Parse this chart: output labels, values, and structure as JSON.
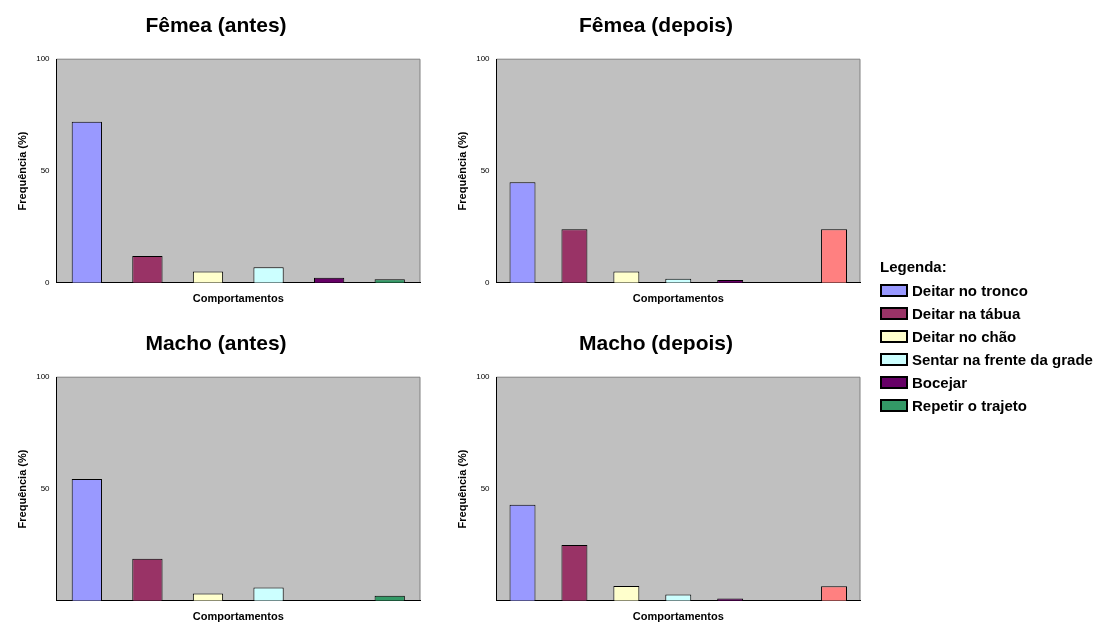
{
  "chart_data": [
    {
      "type": "bar",
      "title": "Fêmea (antes)",
      "xlabel": "Comportamentos",
      "ylabel": "Frequência (%)",
      "categories": [
        null,
        null,
        null,
        null,
        null,
        null
      ],
      "ylim": [
        0,
        100
      ],
      "yticks": [
        0,
        50,
        100
      ],
      "legend": "right",
      "series": [
        {
          "name": "Deitar no tronco",
          "color": "#9999ff",
          "values": [
            72,
            null,
            null,
            null,
            null,
            null
          ]
        },
        {
          "name": "Deitar na tábua",
          "color": "#993366",
          "values": [
            null,
            12,
            null,
            null,
            null,
            null
          ]
        },
        {
          "name": "Deitar no chão",
          "color": "#ffffcc",
          "values": [
            null,
            null,
            5,
            null,
            null,
            null
          ]
        },
        {
          "name": "Sentar na frente da grade",
          "color": "#ccffff",
          "values": [
            null,
            null,
            null,
            7,
            null,
            null
          ]
        },
        {
          "name": "Bocejar",
          "color": "#660066",
          "values": [
            null,
            null,
            null,
            null,
            2.3,
            null
          ]
        },
        {
          "name": "Repetir o trajeto",
          "color": "#339966",
          "values": [
            null,
            null,
            null,
            null,
            null,
            1.6
          ]
        }
      ]
    },
    {
      "type": "bar",
      "title": "Fêmea (depois)",
      "xlabel": "Comportamentos",
      "ylabel": "Frequência (%)",
      "categories": [
        null,
        null,
        null,
        null,
        null,
        null,
        null
      ],
      "ylim": [
        0,
        100
      ],
      "yticks": [
        0,
        50,
        100
      ],
      "legend": "right",
      "legend_title": "Legenda:",
      "series": [
        {
          "name": "Deitar no tronco",
          "color": "#9999ff",
          "values": [
            45,
            null,
            null,
            null,
            null,
            null,
            null
          ]
        },
        {
          "name": "Deitar na tábua",
          "color": "#993366",
          "values": [
            null,
            24,
            null,
            null,
            null,
            null,
            null
          ]
        },
        {
          "name": "Deitar no chão",
          "color": "#ffffcc",
          "values": [
            null,
            null,
            5,
            null,
            null,
            null,
            null
          ]
        },
        {
          "name": "Sentar na frente da grade",
          "color": "#ccffff",
          "values": [
            null,
            null,
            null,
            1.8,
            null,
            null,
            null
          ]
        },
        {
          "name": "Bocejar",
          "color": "#660066",
          "values": [
            null,
            null,
            null,
            null,
            1.2,
            null,
            null
          ]
        },
        {
          "color": "#ff8080",
          "values": [
            null,
            null,
            null,
            null,
            null,
            null,
            24
          ]
        }
      ]
    },
    {
      "type": "bar",
      "title": "Macho (antes)",
      "xlabel": "Comportamentos",
      "ylabel": "Frequência (%)",
      "categories": [
        null,
        null,
        null,
        null,
        null,
        null
      ],
      "ylim": [
        0,
        100
      ],
      "yticks": [
        50,
        100
      ],
      "legend": "right",
      "series": [
        {
          "name": "Deitar no tronco",
          "color": "#9999ff",
          "values": [
            54.5,
            null,
            null,
            null,
            null,
            null
          ]
        },
        {
          "name": "Deitar na tábua",
          "color": "#993366",
          "values": [
            null,
            18.8,
            null,
            null,
            null,
            null
          ]
        },
        {
          "name": "Deitar no chão",
          "color": "#ffffcc",
          "values": [
            null,
            null,
            3.3,
            null,
            null,
            null
          ]
        },
        {
          "name": "Sentar na frente da grade",
          "color": "#ccffff",
          "values": [
            null,
            null,
            null,
            6,
            null,
            null
          ]
        },
        {
          "name": "Repetir o trajeto",
          "color": "#339966",
          "values": [
            null,
            null,
            null,
            null,
            null,
            2.3
          ]
        }
      ]
    },
    {
      "type": "bar",
      "title": "Macho (depois)",
      "xlabel": "Comportamentos",
      "ylabel": "Frequência (%)",
      "categories": [
        null,
        null,
        null,
        null,
        null,
        null,
        null
      ],
      "ylim": [
        0,
        100
      ],
      "yticks": [
        50,
        100
      ],
      "legend": "right",
      "series": [
        {
          "name": "Deitar no tronco",
          "color": "#9999ff",
          "values": [
            43,
            null,
            null,
            null,
            null,
            null,
            null
          ]
        },
        {
          "name": "Deitar na tábua",
          "color": "#993366",
          "values": [
            null,
            25,
            null,
            null,
            null,
            null,
            null
          ]
        },
        {
          "name": "Deitar no chão",
          "color": "#ffffcc",
          "values": [
            null,
            null,
            6.6,
            null,
            null,
            null,
            null
          ]
        },
        {
          "name": "Sentar na frente da grade",
          "color": "#ccffff",
          "values": [
            null,
            null,
            null,
            2.8,
            null,
            null,
            null
          ]
        },
        {
          "name": "Bocejar",
          "color": "#660066",
          "values": [
            null,
            null,
            null,
            null,
            1,
            null,
            null
          ]
        },
        {
          "color": "#ff8080",
          "values": [
            null,
            null,
            null,
            null,
            null,
            null,
            6.5
          ]
        }
      ]
    }
  ]
}
